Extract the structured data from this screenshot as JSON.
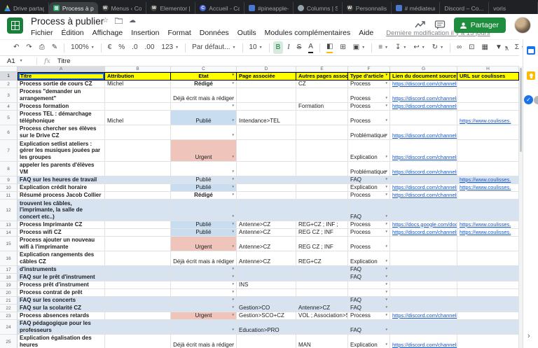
{
  "browser": {
    "tabs": [
      {
        "label": "Drive partag...",
        "fav": "drive"
      },
      {
        "label": "Process à pu...",
        "fav": "sheets",
        "active": true
      },
      {
        "label": "Menus ‹ Cou...",
        "fav": "wp",
        "fav_letter": "W"
      },
      {
        "label": "Elementor |...",
        "fav": "wp",
        "fav_letter": "W"
      },
      {
        "label": "Accueil - Ca...",
        "fav": "c",
        "fav_letter": "C"
      },
      {
        "label": "#pineapple-...",
        "fav": "bluesq"
      },
      {
        "label": "Columns | S...",
        "fav": "teal"
      },
      {
        "label": "Personnalise...",
        "fav": "wp",
        "fav_letter": "W"
      },
      {
        "label": "# médiateur",
        "fav": "bluesq"
      },
      {
        "label": "Discord – Co...",
        "fav": "none"
      },
      {
        "label": "voris",
        "fav": "none"
      }
    ]
  },
  "header": {
    "title": "Process à publier",
    "menus": [
      "Fichier",
      "Édition",
      "Affichage",
      "Insertion",
      "Format",
      "Données",
      "Outils",
      "Modules complémentaires",
      "Aide"
    ],
    "status": "Dernière modification il y a 13 jours",
    "share_label": "Partager"
  },
  "toolbar": {
    "items": [
      {
        "n": "undo-button",
        "g": "↶"
      },
      {
        "n": "redo-button",
        "g": "↷"
      },
      {
        "n": "print-button",
        "g": "⎙"
      },
      {
        "n": "paint-format-button",
        "g": "✎"
      },
      {
        "sep": true
      },
      {
        "n": "zoom-select",
        "t": "100%",
        "drop": true
      },
      {
        "sep": true
      },
      {
        "n": "currency-format-button",
        "g": "€"
      },
      {
        "n": "percent-format-button",
        "g": "%"
      },
      {
        "n": "decrease-decimals-button",
        "g": ".0"
      },
      {
        "n": "increase-decimals-button",
        "g": ".00"
      },
      {
        "n": "number-format-button",
        "g": "123",
        "drop": true
      },
      {
        "sep": true
      },
      {
        "n": "font-select",
        "t": "Par défaut...",
        "drop": true
      },
      {
        "sep": true
      },
      {
        "n": "font-size-select",
        "t": "10",
        "drop": true
      },
      {
        "sep": true
      },
      {
        "n": "bold-button",
        "g": "B",
        "cls": "active"
      },
      {
        "n": "italic-button",
        "g": "I",
        "cls": "italic"
      },
      {
        "n": "strikethrough-button",
        "g": "S",
        "cls": "strike"
      },
      {
        "n": "text-color-button",
        "g": "A",
        "cls": "underbar-black"
      },
      {
        "sep": true
      },
      {
        "n": "fill-color-button",
        "g": "◧",
        "cls": "underbar-yellow"
      },
      {
        "n": "borders-button",
        "g": "⊞"
      },
      {
        "n": "merge-cells-button",
        "g": "▣",
        "drop": true
      },
      {
        "sep": true
      },
      {
        "n": "horizontal-align-button",
        "g": "≡",
        "drop": true
      },
      {
        "n": "vertical-align-button",
        "g": "↧",
        "drop": true
      },
      {
        "n": "text-wrap-button",
        "g": "↩",
        "drop": true
      },
      {
        "n": "text-rotation-button",
        "g": "↻",
        "drop": true
      },
      {
        "sep": true
      },
      {
        "n": "insert-link-button",
        "g": "∞"
      },
      {
        "n": "insert-comment-button",
        "g": "⊡"
      },
      {
        "n": "insert-chart-button",
        "g": "▦"
      },
      {
        "n": "filter-button",
        "g": "▼",
        "drop": true
      },
      {
        "n": "functions-button",
        "g": "Σ",
        "drop": true
      }
    ],
    "collapse_glyph": "∧"
  },
  "formula_bar": {
    "cell_ref": "A1",
    "fx_label": "fx",
    "value": "Titre"
  },
  "grid": {
    "columns": [
      {
        "letter": "A",
        "sel": true
      },
      {
        "letter": "B"
      },
      {
        "letter": "C"
      },
      {
        "letter": "D"
      },
      {
        "letter": "E"
      },
      {
        "letter": "F"
      },
      {
        "letter": "G"
      },
      {
        "letter": "H"
      }
    ],
    "header_row": {
      "n": 1,
      "cells": [
        {
          "text": "Titre",
          "sel": true
        },
        {
          "text": "Attribution"
        },
        {
          "text": "Etat",
          "align": "center",
          "caret": true
        },
        {
          "text": "Page associée"
        },
        {
          "text": "Autres pages associées"
        },
        {
          "text": "Type d'article",
          "caret": true
        },
        {
          "text": "Lien du document source"
        },
        {
          "text": "URL sur coulisses"
        }
      ]
    },
    "rows": [
      {
        "n": 2,
        "h": 11,
        "cbold": true,
        "cells": [
          "Process sortie de cours CZ",
          "Michel",
          "Rédigé",
          "",
          "CZ",
          "Process",
          "https://discord.com/channels/",
          ""
        ]
      },
      {
        "n": 3,
        "h": 21,
        "cells": [
          "Process \"demander un arrangement\"",
          "",
          "Déjà écrit mais à rédiger",
          "",
          "",
          "Process",
          "https://discord.com/channels/",
          ""
        ]
      },
      {
        "n": 4,
        "h": 11,
        "cells": [
          "Process formation",
          "",
          "",
          "",
          "Formation",
          "Process",
          "https://discord.com/channels/",
          ""
        ]
      },
      {
        "n": 5,
        "h": 21,
        "cbg": "blue",
        "cells": [
          "Process TEL : démarchage téléphonique",
          "Michel",
          "Publié",
          "Intendance>TEL",
          "",
          "Process",
          "",
          "https://www.coulisses."
        ]
      },
      {
        "n": 6,
        "h": 21,
        "cells": [
          "Process chercher ses élèves sur le Drive CZ",
          "",
          "",
          "",
          "",
          "Problématique",
          "https://discord.com/channels/",
          ""
        ]
      },
      {
        "n": 7,
        "h": 31,
        "cbg": "red",
        "cells": [
          "Explication setlist ateliers : gérer les musiques jouées par les groupes",
          "",
          "Urgent",
          "",
          "",
          "Explication",
          "https://discord.com/channels/",
          ""
        ]
      },
      {
        "n": 8,
        "h": 21,
        "cells": [
          "Se connecter à pronote pour appeler les parents d'élèves VM",
          "",
          "",
          "",
          "",
          "Problématique",
          "https://discord.com/channels/",
          ""
        ]
      },
      {
        "n": 9,
        "h": 11,
        "faq": true,
        "cells": [
          "FAQ sur les heures de travail",
          "",
          "Publié",
          "",
          "",
          "FAQ",
          "",
          "https://www.coulisses."
        ]
      },
      {
        "n": 10,
        "h": 11,
        "cbg": "blue",
        "cells": [
          "Explication crédit horaire",
          "",
          "Publié",
          "",
          "",
          "Explication",
          "https://discord.com/channels/",
          "https://www.coulisses."
        ]
      },
      {
        "n": 11,
        "h": 11,
        "cbold": true,
        "cells": [
          "Résumé process Jacob Collier",
          "",
          "Rédigé",
          "",
          "",
          "Process",
          "https://discord.com/channels/",
          ""
        ]
      },
      {
        "n": 12,
        "h": 31,
        "faq": true,
        "cells": [
          "FAQ sur la régie à CZ (où se trouvent les câbles, l'imprimante, la salle de concert etc..)",
          "",
          "",
          "",
          "",
          "FAQ",
          "",
          ""
        ]
      },
      {
        "n": 13,
        "h": 11,
        "cbg": "blue",
        "cells": [
          "Process Imprimante CZ",
          "",
          "Publié",
          "Antenne>CZ",
          "REG+CZ ; INF ;",
          "Process",
          "https://docs.google.com/docu",
          "https://www.coulisses."
        ]
      },
      {
        "n": 14,
        "h": 11,
        "cbg": "blue",
        "cells": [
          "Process wifi CZ",
          "",
          "Publié",
          "Antenne>CZ",
          "REG CZ ; INF",
          "Process",
          "https://discord.com/channels/",
          "https://www.coulisses."
        ]
      },
      {
        "n": 15,
        "h": 21,
        "cbg": "red",
        "cells": [
          "Process ajouter un nouveau wifi à l'imprimante",
          "",
          "Urgent",
          "Antenne>CZ",
          "REG CZ ; INF",
          "Process",
          "",
          ""
        ]
      },
      {
        "n": 16,
        "h": 21,
        "cells": [
          "Explication rangements des câbles CZ",
          "",
          "Déjà écrit mais à rédiger",
          "Antenne>CZ",
          "REG+CZ",
          "Explication",
          "",
          ""
        ]
      },
      {
        "n": 17,
        "h": 11,
        "faq": true,
        "cells": [
          "FAQ sur les dons d'instruments",
          "",
          "",
          "",
          "",
          "FAQ",
          "",
          ""
        ]
      },
      {
        "n": 18,
        "h": 11,
        "faq": true,
        "cells": [
          "FAQ sur le prêt d'instrument",
          "",
          "",
          "",
          "",
          "FAQ",
          "",
          ""
        ]
      },
      {
        "n": 19,
        "h": 11,
        "cells": [
          "Process prêt d'instrument",
          "",
          "",
          "INS",
          "",
          "",
          "",
          ""
        ]
      },
      {
        "n": 20,
        "h": 11,
        "cells": [
          "Process contrat de prêt",
          "",
          "",
          "",
          "",
          "",
          "",
          ""
        ]
      },
      {
        "n": 21,
        "h": 11,
        "faq": true,
        "cells": [
          "FAQ sur les concerts",
          "",
          "",
          "",
          "",
          "FAQ",
          "",
          ""
        ]
      },
      {
        "n": 22,
        "h": 11,
        "faq": true,
        "cells": [
          "FAQ sur la scolarité CZ",
          "",
          "",
          "Gestion>CO",
          "Antenne>CZ",
          "FAQ",
          "",
          ""
        ]
      },
      {
        "n": 23,
        "h": 11,
        "cbg": "red",
        "cells": [
          "Process absences retards",
          "",
          "Urgent",
          "Gestion>SCO+CZ",
          "VOL ; Association>St",
          "Process",
          "https://discord.com/channels/",
          ""
        ]
      },
      {
        "n": 24,
        "h": 21,
        "faq": true,
        "cells": [
          "FAQ pédagogique pour les professeurs",
          "",
          "",
          "Education>PRO",
          "",
          "FAQ",
          "",
          ""
        ]
      },
      {
        "n": 25,
        "h": 21,
        "cells": [
          "Explication égalisation des heures",
          "",
          "Déjà écrit mais à rédiger",
          "",
          "MAN",
          "Explication",
          "https://discord.com/channels/",
          ""
        ]
      }
    ]
  },
  "side_panel": {
    "icons": [
      "calendar",
      "keep",
      "tasks"
    ],
    "expand_glyph": "›"
  },
  "colors": {
    "header_fill": "#ffff00",
    "published_fill": "#c9ddf0",
    "urgent_fill": "#efc4bb",
    "faq_row_fill": "#d7e3f0",
    "link": "#1155cc",
    "share_button": "#1e8e3e"
  }
}
